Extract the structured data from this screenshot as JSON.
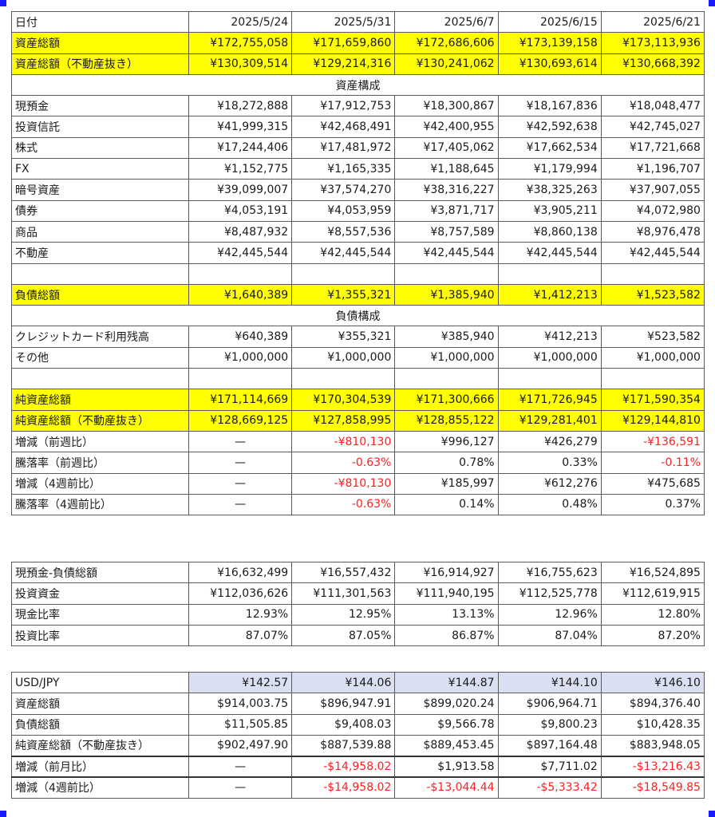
{
  "main": {
    "header": {
      "label": "日付",
      "dates": [
        "2025/5/24",
        "2025/5/31",
        "2025/6/7",
        "2025/6/15",
        "2025/6/21"
      ]
    },
    "total_assets": {
      "label": "資産総額",
      "values": [
        "¥172,755,058",
        "¥171,659,860",
        "¥172,686,606",
        "¥173,139,158",
        "¥173,113,936"
      ]
    },
    "total_assets_ex_re": {
      "label": "資産総額（不動産抜き）",
      "values": [
        "¥130,309,514",
        "¥129,214,316",
        "¥130,241,062",
        "¥130,693,614",
        "¥130,668,392"
      ]
    },
    "asset_section_title": "資産構成",
    "assets": [
      {
        "label": "現預金",
        "values": [
          "¥18,272,888",
          "¥17,912,753",
          "¥18,300,867",
          "¥18,167,836",
          "¥18,048,477"
        ]
      },
      {
        "label": "投資信託",
        "values": [
          "¥41,999,315",
          "¥42,468,491",
          "¥42,400,955",
          "¥42,592,638",
          "¥42,745,027"
        ]
      },
      {
        "label": "株式",
        "values": [
          "¥17,244,406",
          "¥17,481,972",
          "¥17,405,062",
          "¥17,662,534",
          "¥17,721,668"
        ]
      },
      {
        "label": "FX",
        "values": [
          "¥1,152,775",
          "¥1,165,335",
          "¥1,188,645",
          "¥1,179,994",
          "¥1,196,707"
        ]
      },
      {
        "label": "暗号資産",
        "values": [
          "¥39,099,007",
          "¥37,574,270",
          "¥38,316,227",
          "¥38,325,263",
          "¥37,907,055"
        ]
      },
      {
        "label": "債券",
        "values": [
          "¥4,053,191",
          "¥4,053,959",
          "¥3,871,717",
          "¥3,905,211",
          "¥4,072,980"
        ]
      },
      {
        "label": "商品",
        "values": [
          "¥8,487,932",
          "¥8,557,536",
          "¥8,757,589",
          "¥8,860,138",
          "¥8,976,478"
        ]
      },
      {
        "label": "不動産",
        "values": [
          "¥42,445,544",
          "¥42,445,544",
          "¥42,445,544",
          "¥42,445,544",
          "¥42,445,544"
        ]
      }
    ],
    "total_liabilities": {
      "label": "負債総額",
      "values": [
        "¥1,640,389",
        "¥1,355,321",
        "¥1,385,940",
        "¥1,412,213",
        "¥1,523,582"
      ]
    },
    "liability_section_title": "負債構成",
    "liabilities": [
      {
        "label": "クレジットカード利用残高",
        "values": [
          "¥640,389",
          "¥355,321",
          "¥385,940",
          "¥412,213",
          "¥523,582"
        ]
      },
      {
        "label": "その他",
        "values": [
          "¥1,000,000",
          "¥1,000,000",
          "¥1,000,000",
          "¥1,000,000",
          "¥1,000,000"
        ]
      }
    ],
    "net_assets": {
      "label": "純資産総額",
      "values": [
        "¥171,114,669",
        "¥170,304,539",
        "¥171,300,666",
        "¥171,726,945",
        "¥171,590,354"
      ]
    },
    "net_assets_ex_re": {
      "label": "純資産総額（不動産抜き）",
      "values": [
        "¥128,669,125",
        "¥127,858,995",
        "¥128,855,122",
        "¥129,281,401",
        "¥129,144,810"
      ]
    },
    "changes": [
      {
        "label": "増減（前週比）",
        "values": [
          "—",
          "-¥810,130",
          "¥996,127",
          "¥426,279",
          "-¥136,591"
        ],
        "negative": [
          false,
          true,
          false,
          false,
          true
        ]
      },
      {
        "label": "騰落率（前週比）",
        "values": [
          "—",
          "-0.63%",
          "0.78%",
          "0.33%",
          "-0.11%"
        ],
        "negative": [
          false,
          true,
          false,
          false,
          true
        ]
      },
      {
        "label": "増減（4週前比）",
        "values": [
          "—",
          "-¥810,130",
          "¥185,997",
          "¥612,276",
          "¥475,685"
        ],
        "negative": [
          false,
          true,
          false,
          false,
          false
        ]
      },
      {
        "label": "騰落率（4週前比）",
        "values": [
          "—",
          "-0.63%",
          "0.14%",
          "0.48%",
          "0.37%"
        ],
        "negative": [
          false,
          true,
          false,
          false,
          false
        ]
      }
    ]
  },
  "ratios": [
    {
      "label": "現預金-負債総額",
      "values": [
        "¥16,632,499",
        "¥16,557,432",
        "¥16,914,927",
        "¥16,755,623",
        "¥16,524,895"
      ]
    },
    {
      "label": "投資資金",
      "values": [
        "¥112,036,626",
        "¥111,301,563",
        "¥111,940,195",
        "¥112,525,778",
        "¥112,619,915"
      ]
    },
    {
      "label": "現金比率",
      "values": [
        "12.93%",
        "12.95%",
        "13.13%",
        "12.96%",
        "12.80%"
      ]
    },
    {
      "label": "投資比率",
      "values": [
        "87.07%",
        "87.05%",
        "86.87%",
        "87.04%",
        "87.20%"
      ]
    }
  ],
  "usd": {
    "rate": {
      "label": "USD/JPY",
      "values": [
        "¥142.57",
        "¥144.06",
        "¥144.87",
        "¥144.10",
        "¥146.10"
      ]
    },
    "rows": [
      {
        "label": "資産総額",
        "values": [
          "$914,003.75",
          "$896,947.91",
          "$899,020.24",
          "$906,964.71",
          "$894,376.40"
        ]
      },
      {
        "label": "負債総額",
        "values": [
          "$11,505.85",
          "$9,408.03",
          "$9,566.78",
          "$9,800.23",
          "$10,428.35"
        ]
      },
      {
        "label": "純資産総額（不動産抜き）",
        "values": [
          "$902,497.90",
          "$887,539.88",
          "$889,453.45",
          "$897,164.48",
          "$883,948.05"
        ]
      }
    ],
    "changes": [
      {
        "label": "増減（前月比）",
        "values": [
          "—",
          "-$14,958.02",
          "$1,913.58",
          "$7,711.02",
          "-$13,216.43"
        ],
        "negative": [
          false,
          true,
          false,
          false,
          true
        ]
      },
      {
        "label": "増減（4週前比）",
        "values": [
          "—",
          "-$14,958.02",
          "-$13,044.44",
          "-$5,333.42",
          "-$18,549.85"
        ],
        "negative": [
          false,
          true,
          true,
          true,
          true
        ]
      }
    ]
  },
  "colors": {
    "highlight": "#ffff00",
    "negative": "#ff2020",
    "rate_bg": "#dae0f2",
    "corner_marker": "#1a1aff"
  }
}
